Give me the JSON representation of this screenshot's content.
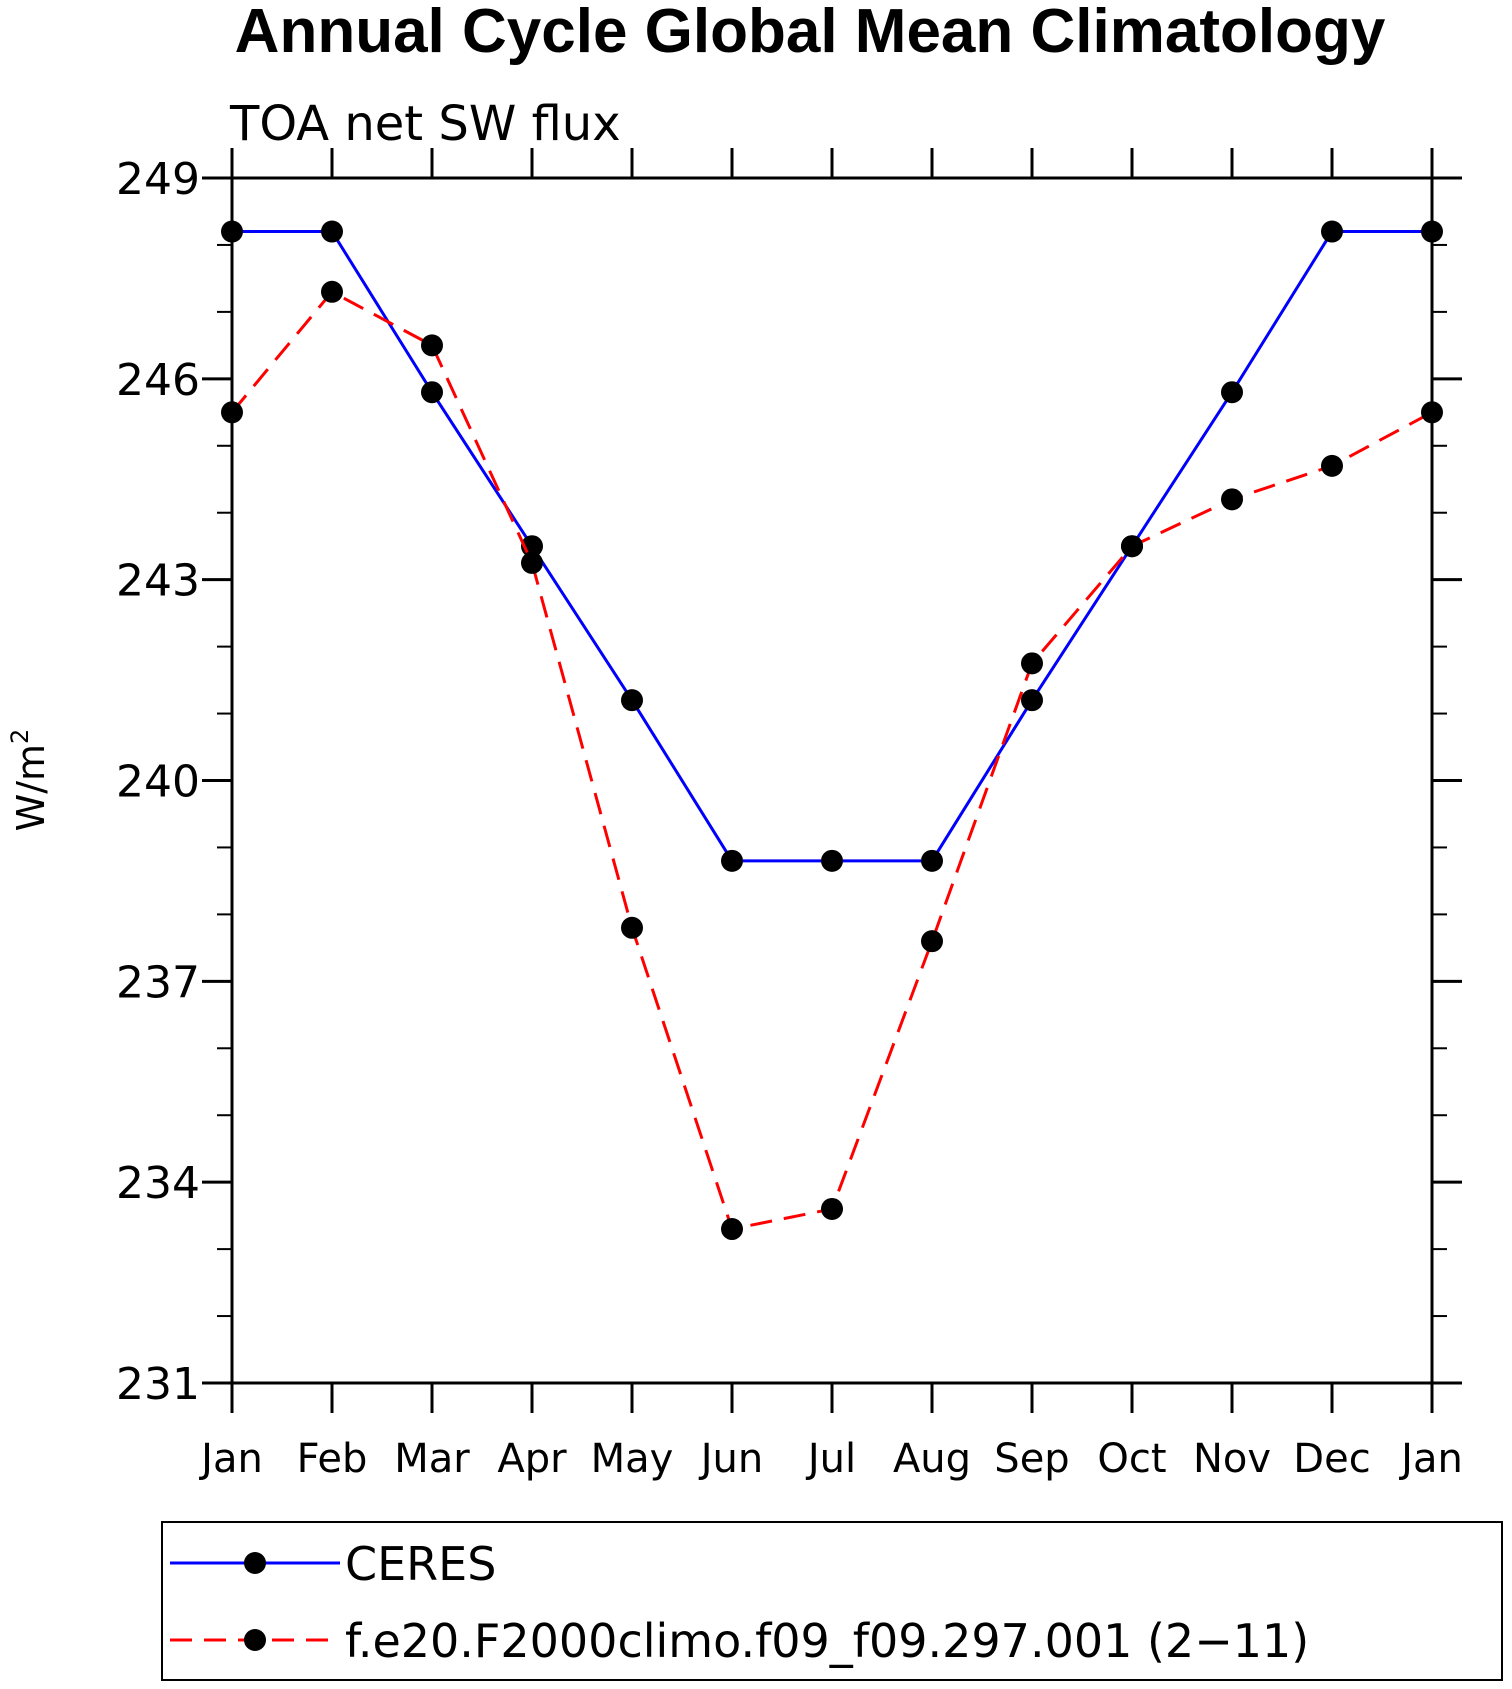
{
  "chart_data": {
    "type": "line",
    "title": "Annual Cycle Global Mean Climatology",
    "subtitle": "TOA net SW flux",
    "xlabel": "",
    "ylabel": "W/m",
    "ylabel_superscript": "2",
    "categories": [
      "Jan",
      "Feb",
      "Mar",
      "Apr",
      "May",
      "Jun",
      "Jul",
      "Aug",
      "Sep",
      "Oct",
      "Nov",
      "Dec",
      "Jan"
    ],
    "ylim": [
      231,
      249
    ],
    "yticks": [
      "231",
      "234",
      "237",
      "240",
      "243",
      "246",
      "249"
    ],
    "grid": false,
    "legend_position": "bottom",
    "series": [
      {
        "name": "CERES",
        "color": "#0000ff",
        "dash": "solid",
        "marker": "filled-circle",
        "values": [
          248.2,
          248.2,
          245.8,
          243.5,
          241.2,
          238.8,
          238.8,
          238.8,
          241.2,
          243.5,
          245.8,
          248.2,
          248.2
        ]
      },
      {
        "name": "f.e20.F2000climo.f09_f09.297.001 (2−11)",
        "color": "#ff0000",
        "dash": "dashed",
        "marker": "filled-circle",
        "values": [
          245.5,
          247.3,
          246.5,
          243.25,
          237.8,
          233.3,
          233.6,
          237.6,
          241.75,
          243.5,
          244.2,
          244.7,
          245.5
        ]
      }
    ]
  }
}
